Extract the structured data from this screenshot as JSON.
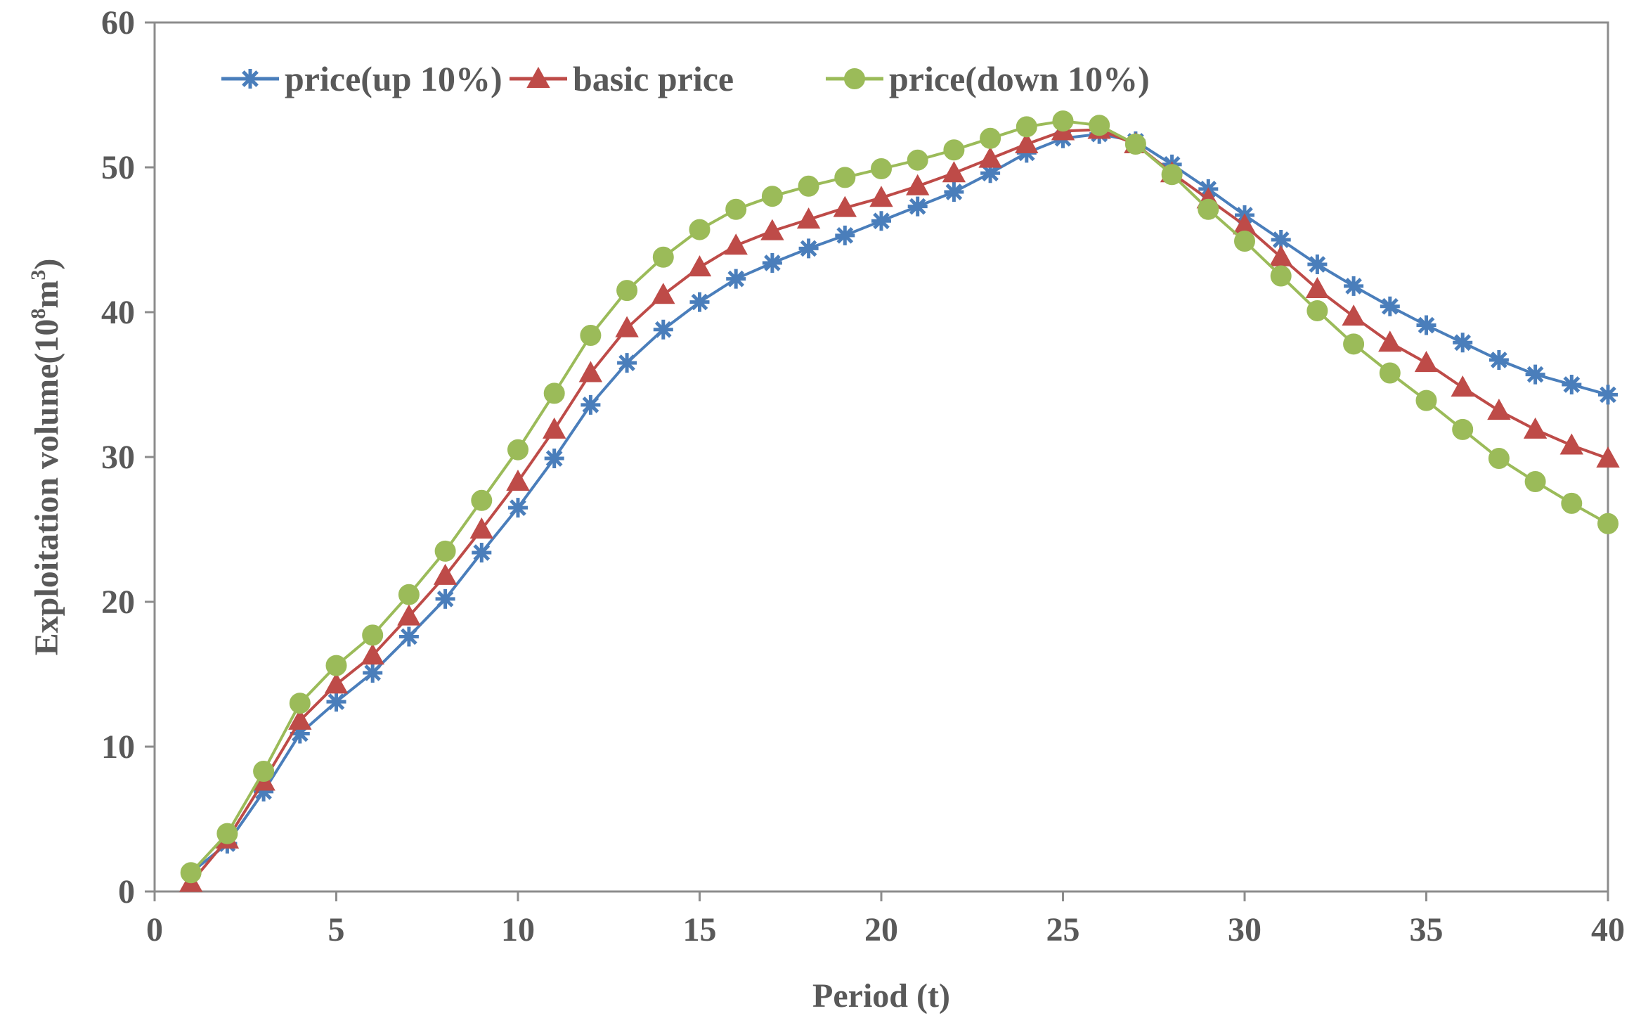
{
  "chart_data": {
    "type": "line",
    "title": "",
    "xlabel": "Period (t)",
    "ylabel": {
      "prefix": "Exploitation volume(10",
      "sup1": "8",
      "mid": "m",
      "sup2": "3",
      "suffix": ")"
    },
    "xlim": [
      0,
      40
    ],
    "ylim": [
      0,
      60
    ],
    "xticks": [
      0,
      5,
      10,
      15,
      20,
      25,
      30,
      35,
      40
    ],
    "yticks": [
      0,
      10,
      20,
      30,
      40,
      50,
      60
    ],
    "grid": false,
    "legend_position": "top",
    "x": [
      1,
      2,
      3,
      4,
      5,
      6,
      7,
      8,
      9,
      10,
      11,
      12,
      13,
      14,
      15,
      16,
      17,
      18,
      19,
      20,
      21,
      22,
      23,
      24,
      25,
      26,
      27,
      28,
      29,
      30,
      31,
      32,
      33,
      34,
      35,
      36,
      37,
      38,
      39,
      40
    ],
    "series": [
      {
        "name": "price(up 10%)",
        "color": "#4a7ebb",
        "marker": "asterisk",
        "values": [
          1.3,
          3.3,
          6.9,
          10.9,
          13.1,
          15.1,
          17.6,
          20.2,
          23.4,
          26.5,
          29.9,
          33.6,
          36.5,
          38.8,
          40.7,
          42.3,
          43.4,
          44.4,
          45.3,
          46.3,
          47.3,
          48.3,
          49.6,
          51.0,
          52.0,
          52.3,
          51.8,
          50.2,
          48.5,
          46.7,
          45.0,
          43.3,
          41.8,
          40.4,
          39.1,
          37.9,
          36.7,
          35.7,
          35.0,
          34.3
        ]
      },
      {
        "name": "basic price",
        "color": "#be4b48",
        "marker": "triangle",
        "values": [
          0.6,
          3.6,
          7.6,
          11.8,
          14.3,
          16.3,
          19.0,
          21.8,
          25.0,
          28.3,
          31.9,
          35.8,
          38.9,
          41.2,
          43.1,
          44.6,
          45.6,
          46.4,
          47.2,
          47.9,
          48.7,
          49.6,
          50.6,
          51.6,
          52.5,
          52.6,
          51.6,
          49.6,
          47.8,
          46.0,
          43.8,
          41.6,
          39.7,
          37.9,
          36.5,
          34.8,
          33.2,
          31.9,
          30.8,
          29.9
        ]
      },
      {
        "name": "price(down 10%)",
        "color": "#9bbb59",
        "marker": "circle",
        "values": [
          1.3,
          4.0,
          8.3,
          13.0,
          15.6,
          17.7,
          20.5,
          23.5,
          27.0,
          30.5,
          34.4,
          38.4,
          41.5,
          43.8,
          45.7,
          47.1,
          48.0,
          48.7,
          49.3,
          49.9,
          50.5,
          51.2,
          52.0,
          52.8,
          53.2,
          52.9,
          51.6,
          49.5,
          47.1,
          44.9,
          42.5,
          40.1,
          37.8,
          35.8,
          33.9,
          31.9,
          29.9,
          28.3,
          26.8,
          25.4
        ]
      }
    ]
  }
}
